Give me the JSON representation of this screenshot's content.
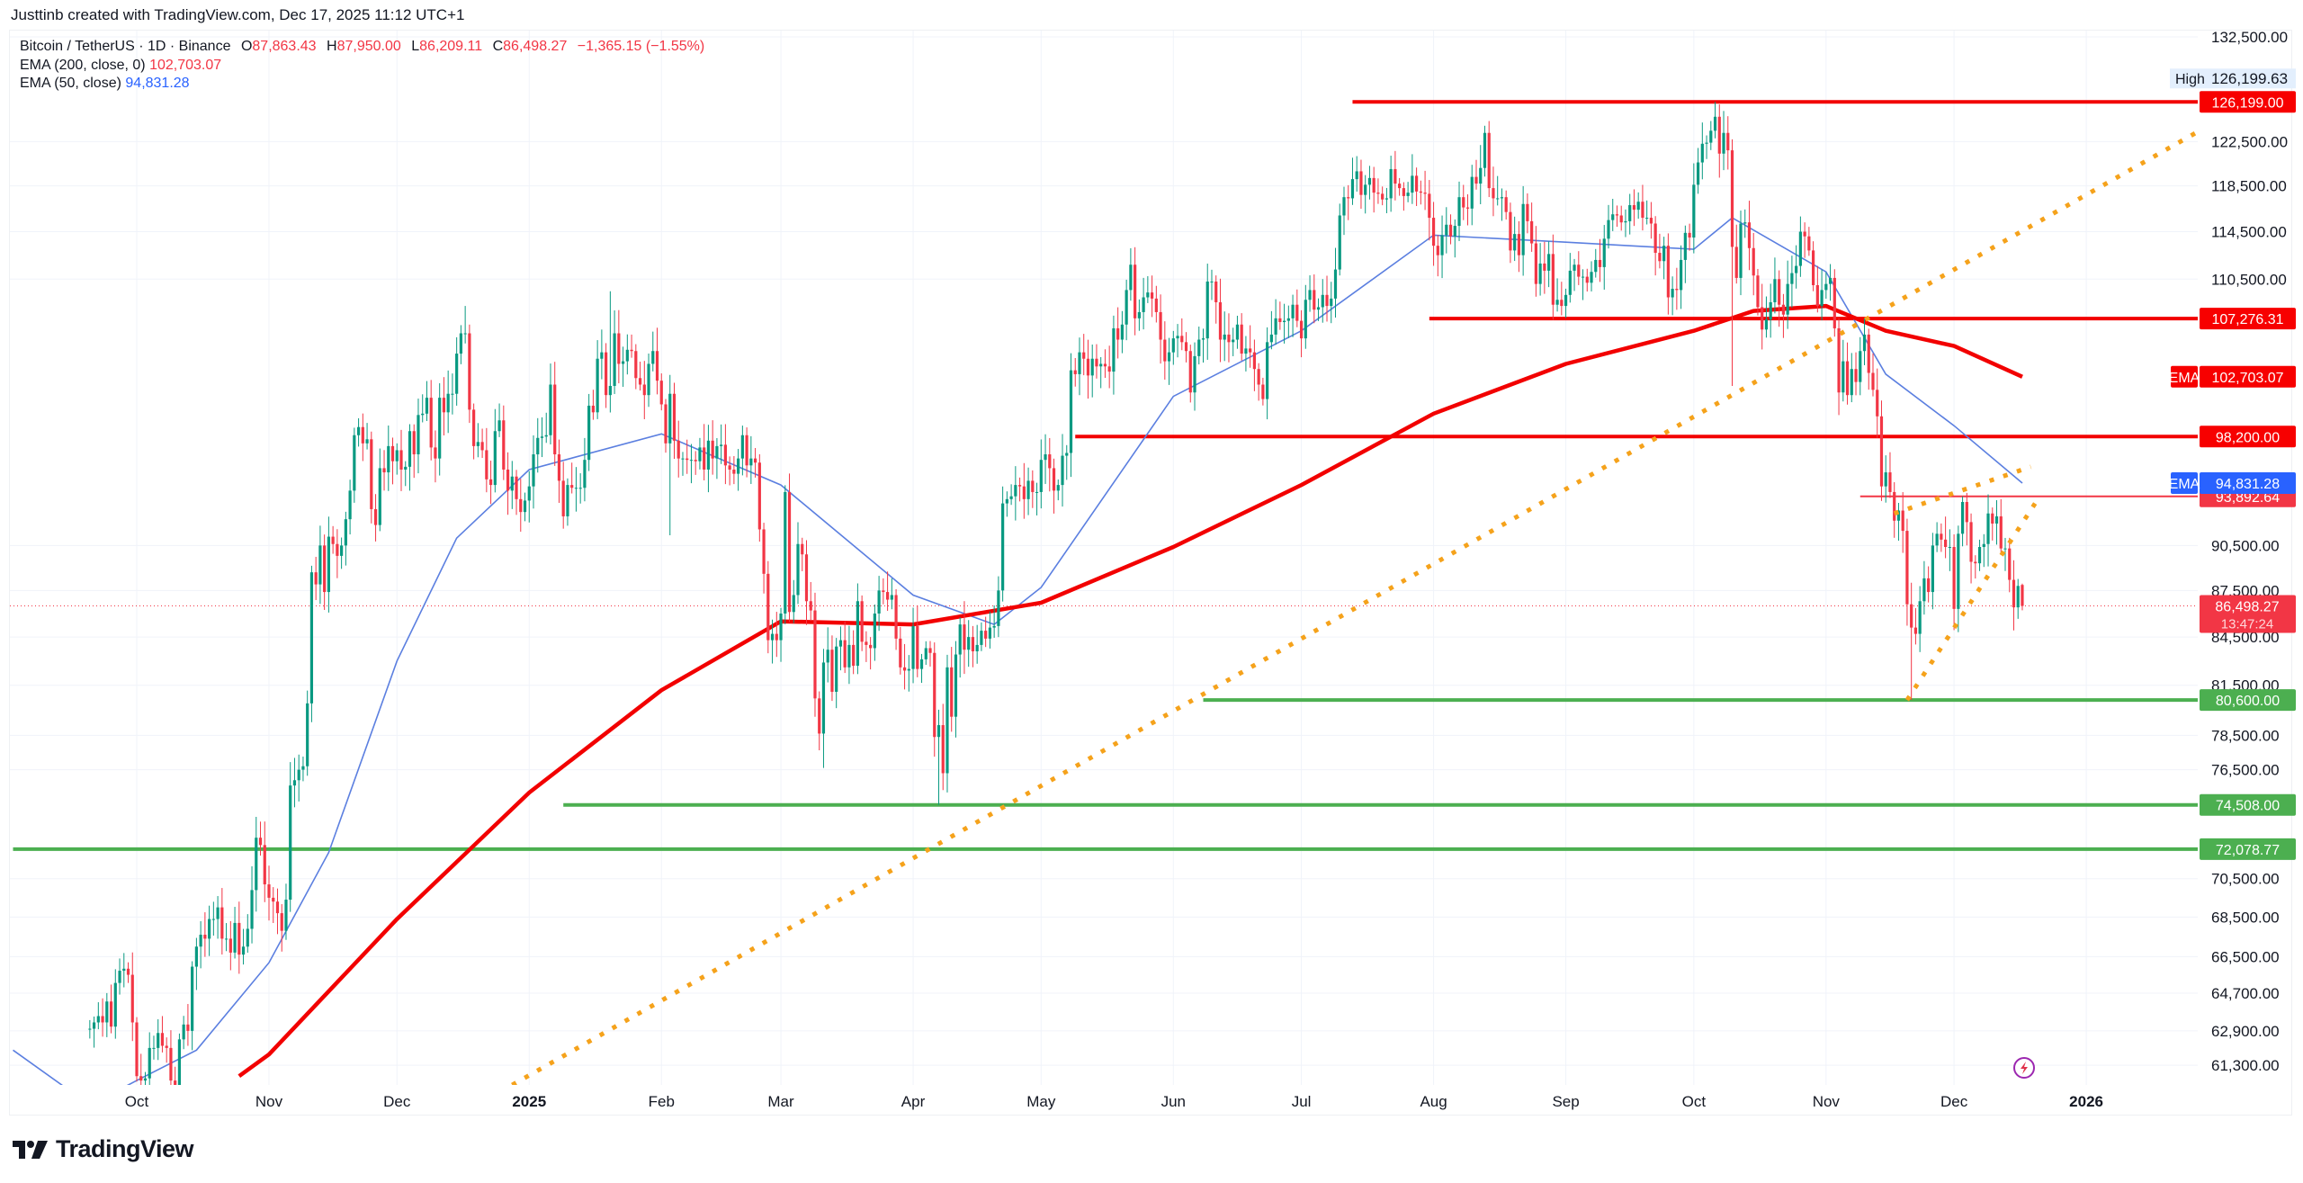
{
  "header": {
    "credit": "Justtinb created with TradingView.com, Dec 17, 2025 11:12 UTC+1"
  },
  "legend": {
    "symbol": "Bitcoin / TetherUS · 1D · Binance",
    "o_label": "O",
    "o": "87,863.43",
    "h_label": "H",
    "h": "87,950.00",
    "l_label": "L",
    "l": "86,209.11",
    "c_label": "C",
    "c": "86,498.27",
    "change": "−1,365.15 (−1.55%)",
    "ema200_label": "EMA (200, close, 0)",
    "ema200_value": "102,703.07",
    "ema50_label": "EMA (50, close)",
    "ema50_value": "94,831.28"
  },
  "footer": {
    "logo_text": "TradingView"
  },
  "colors": {
    "up": "#089981",
    "down": "#f23645",
    "ema200": "#f20000",
    "ema50": "#5b7fe0",
    "resistance": "#f20000",
    "support": "#4caf50",
    "trend": "#f5a21b",
    "grid": "#f0f3fa"
  },
  "chart_data": {
    "type": "candlestick",
    "scale": "log",
    "grid": true,
    "ylim": [
      60000,
      133000
    ],
    "price_ticks": [
      "132,500.00",
      "122,500.00",
      "118,500.00",
      "114,500.00",
      "110,500.00",
      "90,500.00",
      "87,500.00",
      "84,500.00",
      "81,500.00",
      "78,500.00",
      "76,500.00",
      "70,500.00",
      "68,500.00",
      "66,500.00",
      "64,700.00",
      "62,900.00",
      "61,300.00"
    ],
    "time_ticks": [
      {
        "label": "Oct",
        "date": "2024-10-01"
      },
      {
        "label": "Nov",
        "date": "2024-11-01"
      },
      {
        "label": "Dec",
        "date": "2024-12-01"
      },
      {
        "label": "2025",
        "date": "2025-01-01",
        "bold": true
      },
      {
        "label": "Feb",
        "date": "2025-02-01"
      },
      {
        "label": "Mar",
        "date": "2025-03-01"
      },
      {
        "label": "Apr",
        "date": "2025-04-01"
      },
      {
        "label": "May",
        "date": "2025-05-01"
      },
      {
        "label": "Jun",
        "date": "2025-06-01"
      },
      {
        "label": "Jul",
        "date": "2025-07-01"
      },
      {
        "label": "Aug",
        "date": "2025-08-01"
      },
      {
        "label": "Sep",
        "date": "2025-09-01"
      },
      {
        "label": "Oct",
        "date": "2025-10-01"
      },
      {
        "label": "Nov",
        "date": "2025-11-01"
      },
      {
        "label": "Dec",
        "date": "2025-12-01"
      },
      {
        "label": "2026",
        "date": "2026-01-01",
        "bold": true
      }
    ],
    "candles": {
      "start": "2024-09-20",
      "close_thousands": [
        63.0,
        63.3,
        63.6,
        63.3,
        64.3,
        63.1,
        65.2,
        65.8,
        65.9,
        65.6,
        63.3,
        60.8,
        60.6,
        60.7,
        62.1,
        62.1,
        62.8,
        62.2,
        62.1,
        60.6,
        60.3,
        62.5,
        63.2,
        62.9,
        66.0,
        67.0,
        67.6,
        67.4,
        68.4,
        68.4,
        69.0,
        67.4,
        67.4,
        66.7,
        68.2,
        66.6,
        67.0,
        67.9,
        69.9,
        72.7,
        72.3,
        70.2,
        69.5,
        69.3,
        68.7,
        67.8,
        69.4,
        75.6,
        75.9,
        76.5,
        76.7,
        80.4,
        88.7,
        87.9,
        90.5,
        87.4,
        91.1,
        90.6,
        89.8,
        90.5,
        92.3,
        94.3,
        98.3,
        98.9,
        97.7,
        98.0,
        93.0,
        91.9,
        95.9,
        95.6,
        97.5,
        96.4,
        97.2,
        95.8,
        96.0,
        98.6,
        96.9,
        99.8,
        99.9,
        101.1,
        97.4,
        96.6,
        101.1,
        100.0,
        101.4,
        101.4,
        104.5,
        106.1,
        106.1,
        100.2,
        97.5,
        97.8,
        97.2,
        95.1,
        94.7,
        98.6,
        99.4,
        95.8,
        94.3,
        95.3,
        93.7,
        92.8,
        93.6,
        94.6,
        96.9,
        98.1,
        98.2,
        98.3,
        102.1,
        96.9,
        95.0,
        92.5,
        94.7,
        94.5,
        94.5,
        94.5,
        96.5,
        100.5,
        100.0,
        104.1,
        104.6,
        101.3,
        102.0,
        106.1,
        103.7,
        103.9,
        104.8,
        104.7,
        102.6,
        102.1,
        101.3,
        103.7,
        104.7,
        102.4,
        100.6,
        97.7,
        101.4,
        97.9,
        96.6,
        96.6,
        96.5,
        96.5,
        96.4,
        97.4,
        95.8,
        97.9,
        96.6,
        97.5,
        97.6,
        96.1,
        95.8,
        95.5,
        96.6,
        98.3,
        96.1,
        96.6,
        96.3,
        91.6,
        88.6,
        84.3,
        84.7,
        84.3,
        86.0,
        94.2,
        86.1,
        87.2,
        90.6,
        89.9,
        86.8,
        86.2,
        80.7,
        78.6,
        82.9,
        83.7,
        81.1,
        83.9,
        84.3,
        82.6,
        84.0,
        82.7,
        86.8,
        84.2,
        84.0,
        83.8,
        86.0,
        87.5,
        87.4,
        86.9,
        87.2,
        84.4,
        82.6,
        82.4,
        82.5,
        85.2,
        82.5,
        83.1,
        83.8,
        83.5,
        78.4,
        79.1,
        76.3,
        82.6,
        79.6,
        83.4,
        85.3,
        83.7,
        84.5,
        83.6,
        84.0,
        84.9,
        84.4,
        85.1,
        85.2,
        87.5,
        93.4,
        93.7,
        93.9,
        94.7,
        94.6,
        93.7,
        95.0,
        94.2,
        94.2,
        96.5,
        96.9,
        95.9,
        94.3,
        94.7,
        96.8,
        97.0,
        103.2,
        102.9,
        104.6,
        104.1,
        102.8,
        104.1,
        103.5,
        103.7,
        103.5,
        103.1,
        106.5,
        105.6,
        106.8,
        109.6,
        111.7,
        107.3,
        107.8,
        109.0,
        109.4,
        108.9,
        107.8,
        105.6,
        103.9,
        104.6,
        105.7,
        105.9,
        105.4,
        104.7,
        101.5,
        104.3,
        105.6,
        105.7,
        110.3,
        110.3,
        108.6,
        105.6,
        106.0,
        105.4,
        105.6,
        106.8,
        104.5,
        104.9,
        104.6,
        103.3,
        102.1,
        101.0,
        105.4,
        106.0,
        107.3,
        107.0,
        107.1,
        107.3,
        108.4,
        107.1,
        105.7,
        108.8,
        109.6,
        108.0,
        108.2,
        109.2,
        108.3,
        108.9,
        111.3,
        115.9,
        117.5,
        117.4,
        119.1,
        119.8,
        117.7,
        118.6,
        119.2,
        117.9,
        117.8,
        117.3,
        117.4,
        120.0,
        118.7,
        118.3,
        117.6,
        117.9,
        119.4,
        118.0,
        117.9,
        117.8,
        115.7,
        113.3,
        112.5,
        114.2,
        115.1,
        114.1,
        115.0,
        117.5,
        116.6,
        116.5,
        119.3,
        118.7,
        120.1,
        123.3,
        118.3,
        117.4,
        117.4,
        117.5,
        116.2,
        112.9,
        114.3,
        112.5,
        116.9,
        115.4,
        113.5,
        110.1,
        111.8,
        111.2,
        112.6,
        108.4,
        108.8,
        108.3,
        109.2,
        111.2,
        111.7,
        110.7,
        110.7,
        110.2,
        111.1,
        112.1,
        111.5,
        113.9,
        115.5,
        116.0,
        115.9,
        115.3,
        115.4,
        116.8,
        116.4,
        117.1,
        115.7,
        115.7,
        115.2,
        112.7,
        112.0,
        113.3,
        109.0,
        109.7,
        109.6,
        112.1,
        114.4,
        114.0,
        118.6,
        120.6,
        122.3,
        122.4,
        123.5,
        124.8,
        121.4,
        123.3,
        121.7,
        113.2,
        110.6,
        115.2,
        115.3,
        113.1,
        110.8,
        108.2,
        106.4,
        107.2,
        108.6,
        110.5,
        108.4,
        107.6,
        110.1,
        111.0,
        111.6,
        114.5,
        114.1,
        112.9,
        110.0,
        108.3,
        109.6,
        110.1,
        110.6,
        106.5,
        101.5,
        103.9,
        101.3,
        103.3,
        102.3,
        104.7,
        106.0,
        103.0,
        101.7,
        99.7,
        94.6,
        95.6,
        94.2,
        92.2,
        92.9,
        91.5,
        86.6,
        85.1,
        84.7,
        86.8,
        88.3,
        87.4,
        90.5,
        91.3,
        90.9,
        90.4,
        90.4,
        86.3,
        91.3,
        93.5,
        92.1,
        89.4,
        89.3,
        90.4,
        90.6,
        92.7,
        92.0,
        92.5,
        90.3,
        90.3,
        88.2,
        86.4,
        87.8,
        86.5
      ],
      "last": {
        "open": 87863.43,
        "high": 87950.0,
        "low": 86209.11,
        "close": 86498.27
      },
      "extremes": [
        {
          "date": "2025-10-06",
          "high": 126199.63
        },
        {
          "date": "2025-10-10",
          "low": 102000
        },
        {
          "date": "2025-04-07",
          "low": 74508
        },
        {
          "date": "2025-03-11",
          "low": 76600
        },
        {
          "date": "2025-11-21",
          "low": 80600
        },
        {
          "date": "2025-02-03",
          "low": 91200
        },
        {
          "date": "2025-08-14",
          "high": 124400
        },
        {
          "date": "2025-01-20",
          "high": 109500
        },
        {
          "date": "2024-12-17",
          "high": 108300
        }
      ]
    },
    "ema200": [
      [
        "2024-10-25",
        60800
      ],
      [
        "2024-11-01",
        61800
      ],
      [
        "2024-12-01",
        68400
      ],
      [
        "2025-01-01",
        75200
      ],
      [
        "2025-02-01",
        81200
      ],
      [
        "2025-03-01",
        85500
      ],
      [
        "2025-04-01",
        85300
      ],
      [
        "2025-05-01",
        86700
      ],
      [
        "2025-06-01",
        90400
      ],
      [
        "2025-07-01",
        94700
      ],
      [
        "2025-08-01",
        99900
      ],
      [
        "2025-09-01",
        103700
      ],
      [
        "2025-10-01",
        106300
      ],
      [
        "2025-10-15",
        107900
      ],
      [
        "2025-11-01",
        108300
      ],
      [
        "2025-11-15",
        106300
      ],
      [
        "2025-12-01",
        105100
      ],
      [
        "2025-12-17",
        102703.07
      ]
    ],
    "ema50": [
      [
        "2024-09-02",
        62000
      ],
      [
        "2024-09-20",
        59500
      ],
      [
        "2024-10-01",
        60600
      ],
      [
        "2024-10-15",
        62000
      ],
      [
        "2024-11-01",
        66200
      ],
      [
        "2024-11-15",
        71900
      ],
      [
        "2024-12-01",
        83000
      ],
      [
        "2024-12-15",
        91000
      ],
      [
        "2025-01-01",
        95800
      ],
      [
        "2025-02-01",
        98400
      ],
      [
        "2025-03-01",
        94700
      ],
      [
        "2025-04-01",
        87200
      ],
      [
        "2025-04-20",
        85300
      ],
      [
        "2025-05-01",
        87700
      ],
      [
        "2025-06-01",
        101200
      ],
      [
        "2025-07-01",
        106300
      ],
      [
        "2025-08-01",
        114200
      ],
      [
        "2025-09-01",
        113600
      ],
      [
        "2025-10-01",
        113000
      ],
      [
        "2025-10-10",
        115700
      ],
      [
        "2025-11-01",
        111100
      ],
      [
        "2025-11-15",
        102900
      ],
      [
        "2025-12-01",
        99000
      ],
      [
        "2025-12-17",
        94831.28
      ]
    ],
    "levels": [
      {
        "price": 126199.0,
        "label": "126,199.00",
        "from": "2025-07-13",
        "kind": "resistance"
      },
      {
        "price": 107276.31,
        "label": "107,276.31",
        "from": "2025-07-31",
        "kind": "resistance"
      },
      {
        "price": 98200.0,
        "label": "98,200.00",
        "from": "2025-05-09",
        "kind": "resistance"
      },
      {
        "price": 93892.64,
        "label": "93,892.64",
        "from": "2025-11-09",
        "kind": "resistance-thin"
      },
      {
        "price": 80600.0,
        "label": "80,600.00",
        "from": "2025-06-08",
        "kind": "support"
      },
      {
        "price": 74508.0,
        "label": "74,508.00",
        "from": "2025-01-09",
        "kind": "support"
      },
      {
        "price": 72078.77,
        "label": "72,078.77",
        "from": "2024-09-02",
        "kind": "support"
      }
    ],
    "trendlines": [
      {
        "from": [
          "2024-12-28",
          60400
        ],
        "to": [
          "2026-01-28",
          123600
        ]
      },
      {
        "from": [
          "2025-11-20",
          80600
        ],
        "to": [
          "2025-12-20",
          93400
        ]
      },
      {
        "from": [
          "2025-11-17",
          92700
        ],
        "to": [
          "2025-12-19",
          96000
        ]
      }
    ],
    "axis_badges": {
      "high_label": "High",
      "high_value": "126,199.63",
      "ema_tag": "EMA",
      "ema200_value": "102,703.07",
      "ema50_value": "94,831.28",
      "last_price": "86,498.27",
      "countdown": "13:47:24"
    }
  }
}
